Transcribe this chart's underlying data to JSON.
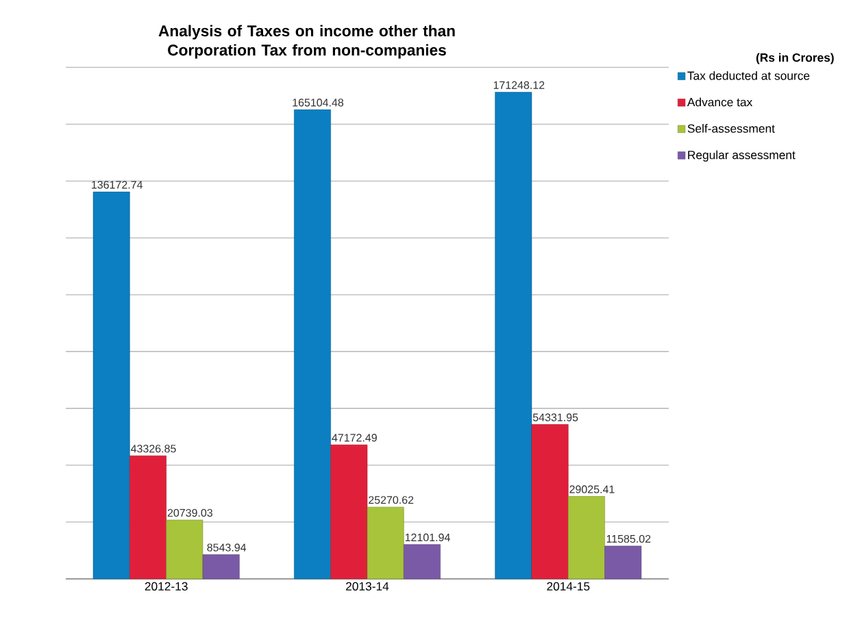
{
  "chart_data": {
    "type": "bar",
    "title": "Analysis of Taxes on income other than Corporation Tax from non-companies",
    "categories": [
      "2012-13",
      "2013-14",
      "2014-15"
    ],
    "series": [
      {
        "name": "Tax deducted at source",
        "color": "#0b7fc1",
        "values": [
          136172.74,
          165104.48,
          171248.12
        ]
      },
      {
        "name": "Advance tax",
        "color": "#e0203a",
        "values": [
          43326.85,
          47172.49,
          54331.95
        ]
      },
      {
        "name": "Self-assessment",
        "color": "#a8c43a",
        "values": [
          20739.03,
          25270.62,
          29025.41
        ]
      },
      {
        "name": "Regular assessment",
        "color": "#7a5aa6",
        "values": [
          8543.94,
          12101.94,
          11585.02
        ]
      }
    ],
    "ylim": [
      0,
      180000
    ],
    "yticks": [
      {
        "value": 0,
        "label": null
      },
      {
        "value": 20000,
        "label": null
      },
      {
        "value": 40000,
        "label": null
      },
      {
        "value": 60000,
        "label": null
      },
      {
        "value": 80000,
        "label": null
      },
      {
        "value": 100000,
        "label": null
      },
      {
        "value": 120000,
        "label": null
      },
      {
        "value": 140000,
        "label": null
      },
      {
        "value": 160000,
        "label": null
      },
      {
        "value": 180000,
        "label": null
      }
    ],
    "tick_labels": "x",
    "grid": "y",
    "legend": "top right",
    "data_labels": true,
    "annotations": [
      "(Rs in Crores)"
    ]
  }
}
